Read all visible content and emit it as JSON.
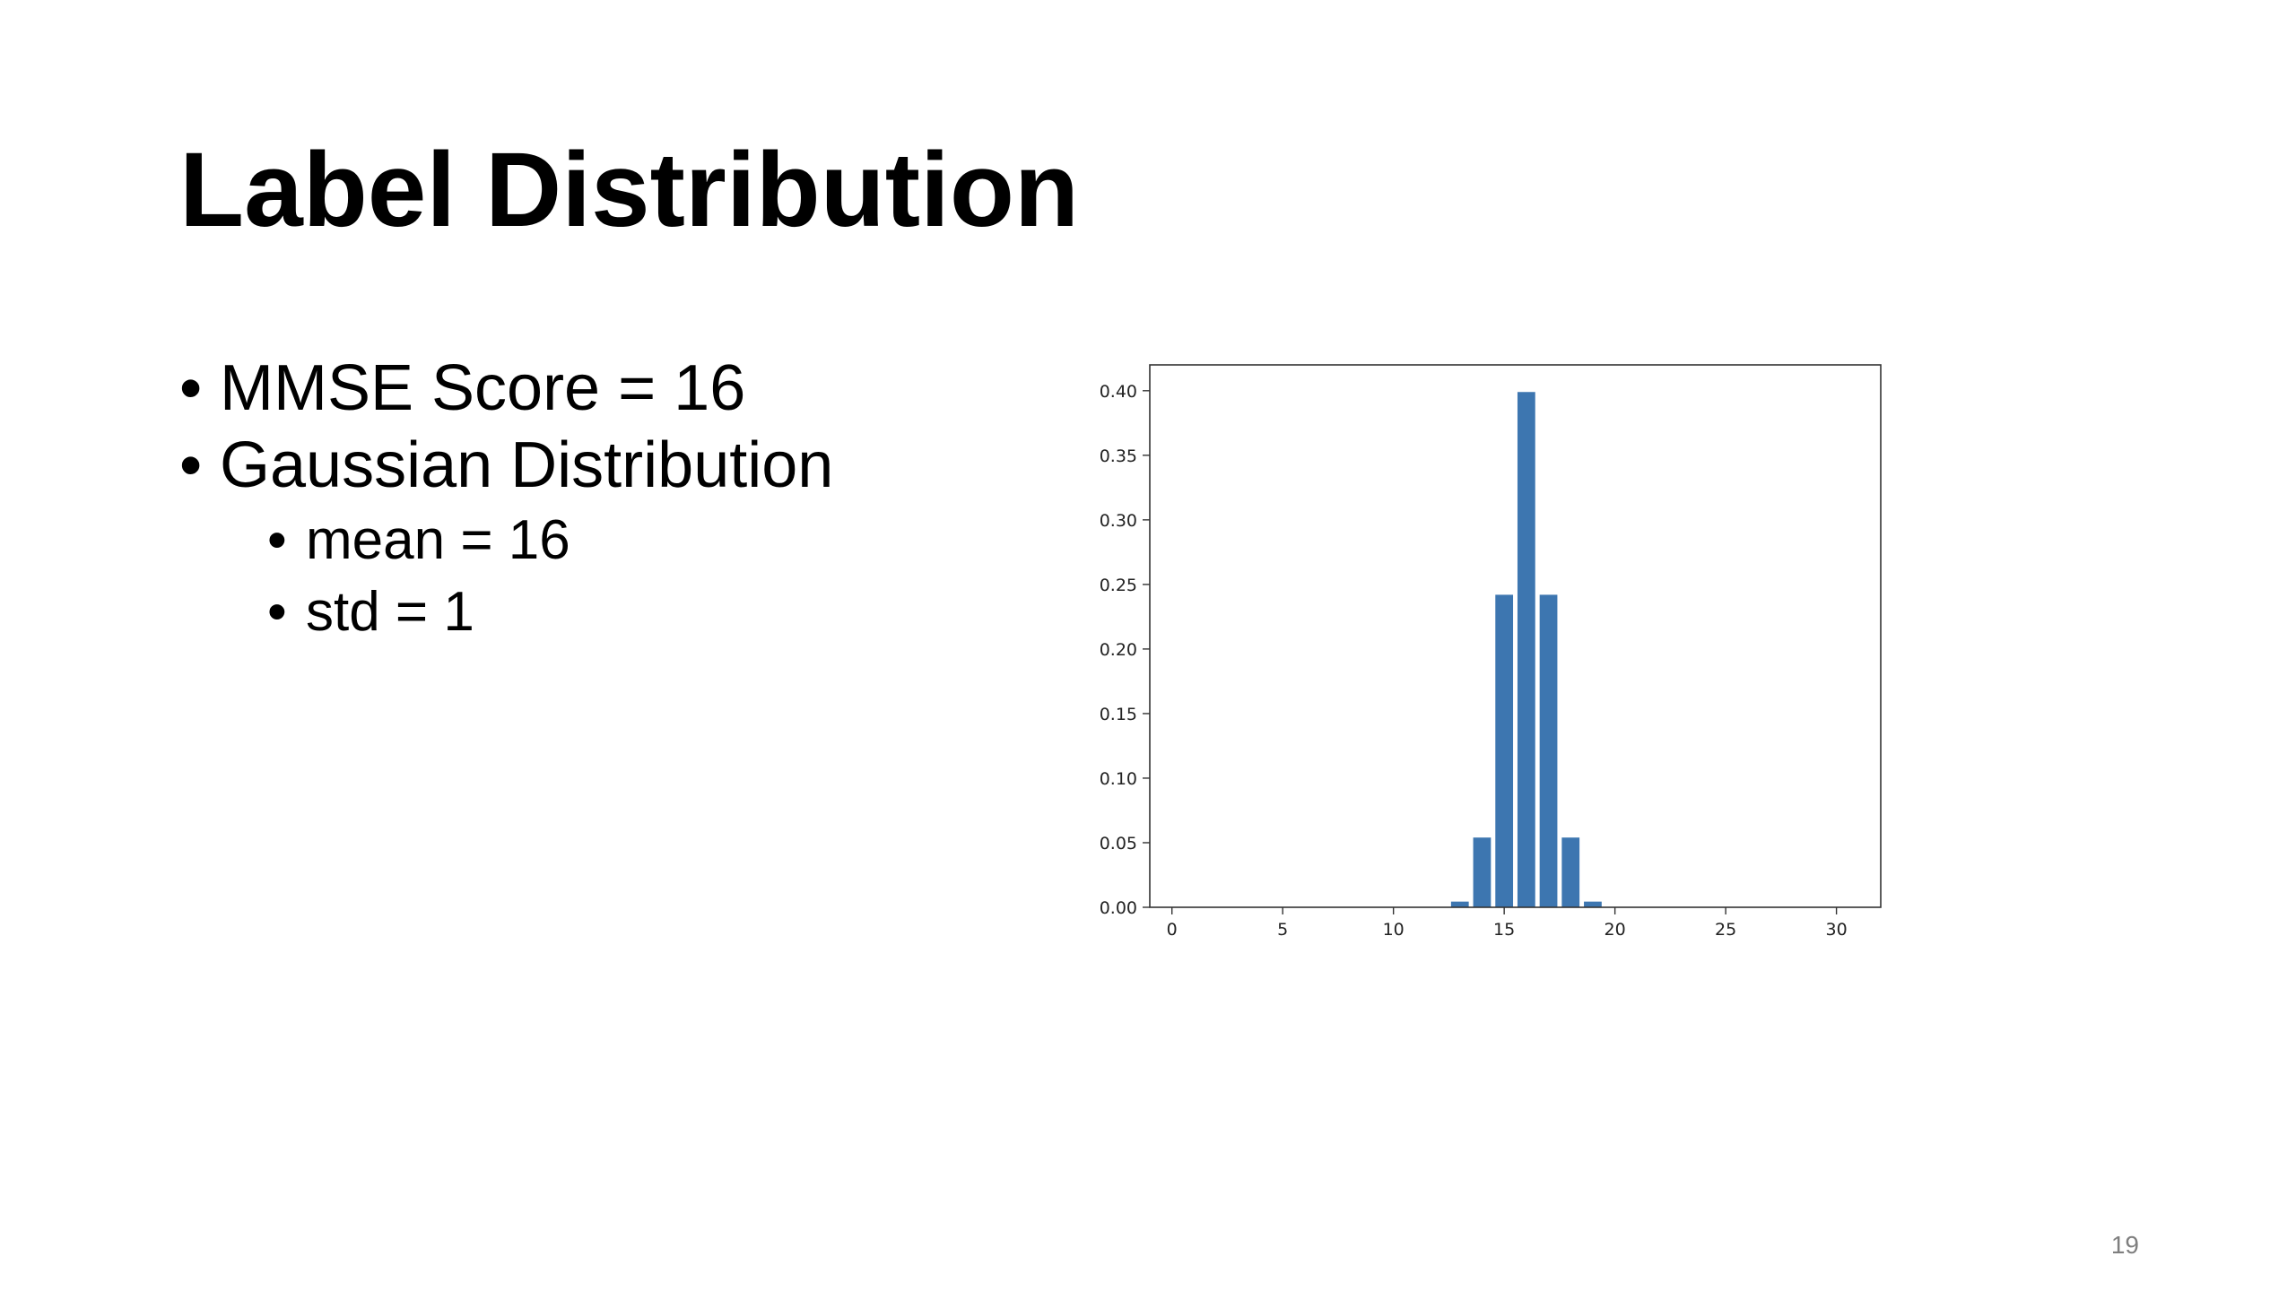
{
  "slide": {
    "title": "Label Distribution",
    "bullets": [
      {
        "text": "MMSE Score = 16"
      },
      {
        "text": "Gaussian Distribution"
      }
    ],
    "sub_bullets": [
      {
        "text": "mean = 16"
      },
      {
        "text": "std = 1"
      }
    ],
    "page_number": "19"
  },
  "colors": {
    "bar": "#3d76b0",
    "axis": "#333333"
  },
  "chart_data": {
    "type": "bar",
    "title": "",
    "xlabel": "",
    "ylabel": "",
    "x": [
      13,
      14,
      15,
      16,
      17,
      18,
      19
    ],
    "values": [
      0.0044,
      0.054,
      0.242,
      0.399,
      0.242,
      0.054,
      0.0044
    ],
    "xlim": [
      -1,
      32
    ],
    "ylim": [
      0,
      0.42
    ],
    "xticks": [
      0,
      5,
      10,
      15,
      20,
      25,
      30
    ],
    "yticks": [
      0.0,
      0.05,
      0.1,
      0.15,
      0.2,
      0.25,
      0.3,
      0.35,
      0.4
    ],
    "grid": false
  }
}
